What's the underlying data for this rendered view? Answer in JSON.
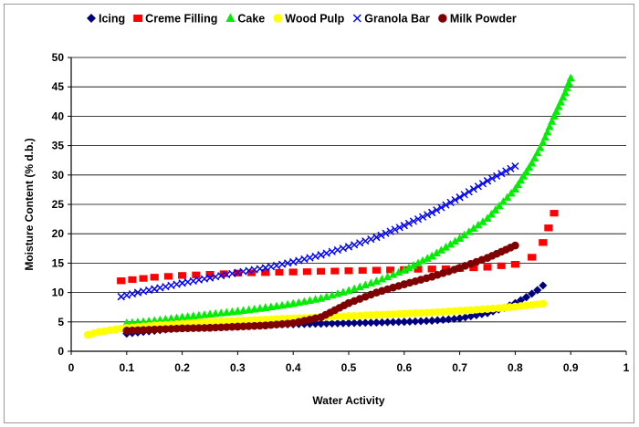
{
  "chart_data": {
    "type": "scatter",
    "title": "",
    "xlabel": "Water Activity",
    "ylabel": "Moisture Content (% d.b.)",
    "xlim": [
      0,
      1
    ],
    "ylim": [
      0,
      50
    ],
    "xticks": [
      "0",
      "0.1",
      "0.2",
      "0.3",
      "0.4",
      "0.5",
      "0.6",
      "0.7",
      "0.8",
      "0.9",
      "1"
    ],
    "yticks": [
      "0",
      "5",
      "10",
      "15",
      "20",
      "25",
      "30",
      "35",
      "40",
      "45",
      "50"
    ],
    "grid": "horizontal",
    "legend_position": "top",
    "series": [
      {
        "name": "Icing",
        "color": "#00007f",
        "marker": "diamond",
        "x": [
          0.1,
          0.15,
          0.2,
          0.25,
          0.3,
          0.35,
          0.4,
          0.45,
          0.5,
          0.55,
          0.6,
          0.65,
          0.7,
          0.75,
          0.78,
          0.8,
          0.82,
          0.84,
          0.85
        ],
        "y": [
          3.0,
          3.5,
          4.0,
          4.2,
          4.4,
          4.5,
          4.6,
          4.7,
          4.8,
          4.9,
          5.0,
          5.2,
          5.6,
          6.5,
          7.4,
          8.2,
          9.2,
          10.4,
          11.2
        ]
      },
      {
        "name": "Creme Filling",
        "color": "#ff0000",
        "marker": "square",
        "x": [
          0.09,
          0.15,
          0.2,
          0.25,
          0.3,
          0.35,
          0.4,
          0.45,
          0.5,
          0.55,
          0.6,
          0.65,
          0.7,
          0.75,
          0.8,
          0.83,
          0.85,
          0.86,
          0.87
        ],
        "y": [
          12.0,
          12.6,
          12.9,
          13.1,
          13.3,
          13.4,
          13.5,
          13.6,
          13.7,
          13.8,
          13.9,
          14.0,
          14.1,
          14.3,
          14.8,
          16.0,
          18.5,
          21.0,
          23.5
        ]
      },
      {
        "name": "Cake",
        "color": "#00ee00",
        "marker": "triangle",
        "x": [
          0.1,
          0.15,
          0.2,
          0.25,
          0.3,
          0.35,
          0.4,
          0.45,
          0.5,
          0.55,
          0.6,
          0.65,
          0.7,
          0.75,
          0.8,
          0.83,
          0.85,
          0.87,
          0.89,
          0.9
        ],
        "y": [
          4.8,
          5.2,
          5.8,
          6.3,
          6.8,
          7.4,
          8.1,
          9.0,
          10.3,
          11.9,
          13.8,
          16.2,
          19.2,
          22.6,
          27.6,
          32.0,
          35.5,
          40.0,
          44.0,
          46.5
        ]
      },
      {
        "name": "Wood Pulp",
        "color": "#ffff00",
        "marker": "circle",
        "x": [
          0.03,
          0.05,
          0.1,
          0.15,
          0.2,
          0.25,
          0.3,
          0.35,
          0.4,
          0.45,
          0.5,
          0.55,
          0.6,
          0.65,
          0.7,
          0.75,
          0.8,
          0.85
        ],
        "y": [
          2.8,
          3.3,
          4.0,
          4.4,
          4.7,
          5.0,
          5.2,
          5.4,
          5.6,
          5.8,
          6.0,
          6.2,
          6.4,
          6.6,
          6.9,
          7.2,
          7.6,
          8.1
        ]
      },
      {
        "name": "Granola Bar",
        "color": "#0000ff",
        "marker": "x",
        "x": [
          0.09,
          0.12,
          0.15,
          0.2,
          0.25,
          0.3,
          0.35,
          0.4,
          0.45,
          0.5,
          0.55,
          0.6,
          0.65,
          0.7,
          0.75,
          0.8
        ],
        "y": [
          9.3,
          10.0,
          10.6,
          11.6,
          12.5,
          13.4,
          14.2,
          15.2,
          16.4,
          17.8,
          19.4,
          21.4,
          23.6,
          26.2,
          29.0,
          31.5
        ]
      },
      {
        "name": "Milk Powder",
        "color": "#7f0000",
        "marker": "circle",
        "x": [
          0.1,
          0.15,
          0.2,
          0.25,
          0.3,
          0.35,
          0.4,
          0.45,
          0.5,
          0.55,
          0.6,
          0.65,
          0.7,
          0.75,
          0.8
        ],
        "y": [
          3.5,
          3.7,
          3.9,
          4.0,
          4.2,
          4.4,
          4.8,
          5.8,
          8.2,
          10.0,
          11.4,
          12.7,
          14.2,
          15.9,
          18.0
        ]
      }
    ]
  }
}
